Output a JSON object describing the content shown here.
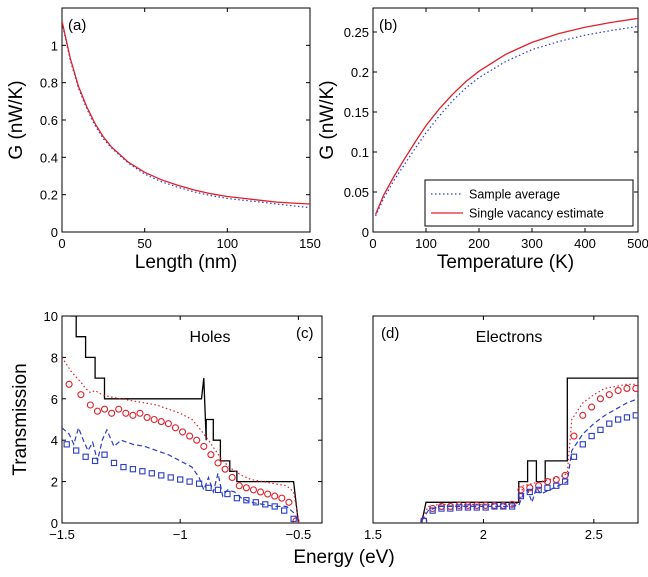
{
  "chart_data": [
    {
      "type": "line",
      "panel_label": "(a)",
      "xlabel": "Length (nm)",
      "ylabel": "G  (nW/K)",
      "xlim": [
        0,
        150
      ],
      "ylim": [
        0,
        1.2
      ],
      "xticks": [
        0,
        50,
        100,
        150
      ],
      "yticks": [
        0,
        0.2,
        0.4,
        0.6,
        0.8,
        1
      ],
      "grid": false,
      "series": [
        {
          "name": "Sample average",
          "style": "dotted",
          "color": "#2a3cc8",
          "x": [
            0,
            5,
            10,
            15,
            20,
            25,
            30,
            40,
            50,
            60,
            70,
            80,
            90,
            100,
            110,
            120,
            130,
            140,
            150
          ],
          "y": [
            1.12,
            0.92,
            0.77,
            0.66,
            0.57,
            0.5,
            0.45,
            0.37,
            0.31,
            0.27,
            0.24,
            0.215,
            0.195,
            0.18,
            0.17,
            0.16,
            0.15,
            0.14,
            0.13
          ]
        },
        {
          "name": "Single vacancy estimate",
          "style": "solid",
          "color": "#e0202a",
          "x": [
            0,
            5,
            10,
            15,
            20,
            25,
            30,
            40,
            50,
            60,
            70,
            80,
            90,
            100,
            110,
            120,
            130,
            140,
            150
          ],
          "y": [
            1.13,
            0.93,
            0.78,
            0.67,
            0.58,
            0.51,
            0.455,
            0.375,
            0.32,
            0.28,
            0.25,
            0.225,
            0.205,
            0.19,
            0.18,
            0.17,
            0.16,
            0.155,
            0.15
          ]
        }
      ]
    },
    {
      "type": "line",
      "panel_label": "(b)",
      "xlabel": "Temperature (K)",
      "ylabel": "G  (nW/K)",
      "xlim": [
        0,
        500
      ],
      "ylim": [
        0,
        0.28
      ],
      "xticks": [
        0,
        100,
        200,
        300,
        400,
        500
      ],
      "yticks": [
        0,
        0.05,
        0.1,
        0.15,
        0.2,
        0.25
      ],
      "grid": false,
      "legend": {
        "position": "bottom-right",
        "entries": [
          "Sample average",
          "Single vacancy estimate"
        ]
      },
      "series": [
        {
          "name": "Sample average",
          "style": "dotted",
          "color": "#2a3cc8",
          "x": [
            5,
            20,
            40,
            60,
            80,
            100,
            125,
            150,
            175,
            200,
            250,
            300,
            350,
            400,
            450,
            500
          ],
          "y": [
            0.02,
            0.042,
            0.065,
            0.085,
            0.105,
            0.124,
            0.145,
            0.164,
            0.18,
            0.193,
            0.213,
            0.228,
            0.238,
            0.246,
            0.252,
            0.257
          ]
        },
        {
          "name": "Single vacancy estimate",
          "style": "solid",
          "color": "#e0202a",
          "x": [
            5,
            20,
            40,
            60,
            80,
            100,
            125,
            150,
            175,
            200,
            250,
            300,
            350,
            400,
            450,
            500
          ],
          "y": [
            0.022,
            0.046,
            0.07,
            0.092,
            0.113,
            0.133,
            0.154,
            0.172,
            0.188,
            0.201,
            0.222,
            0.237,
            0.248,
            0.256,
            0.262,
            0.267
          ]
        }
      ]
    },
    {
      "type": "line",
      "panel_label": "(c)",
      "annotation": "Holes",
      "xlabel": "",
      "ylabel": "Transmission",
      "xlim": [
        -1.5,
        -0.4
      ],
      "ylim": [
        0,
        10
      ],
      "xticks": [
        -1.5,
        -1,
        -0.5
      ],
      "xticklabels": [
        "−1.5",
        "−1",
        "−0.5"
      ],
      "yticks": [
        0,
        2,
        4,
        6,
        8,
        10
      ],
      "grid": false,
      "series": [
        {
          "name": "",
          "style": "solid",
          "color": "#000000",
          "x": [
            -1.46,
            -1.46,
            -1.44,
            -1.44,
            -1.4,
            -1.4,
            -1.36,
            -1.36,
            -1.32,
            -1.32,
            -0.91,
            -0.9,
            -0.89,
            -0.89,
            -0.86,
            -0.86,
            -0.83,
            -0.83,
            -0.79,
            -0.79,
            -0.76,
            -0.76,
            -0.52,
            -0.5
          ],
          "y": [
            10.5,
            10,
            10,
            9,
            9,
            8,
            8,
            7,
            7,
            6,
            6,
            7,
            4,
            5,
            5,
            4,
            4,
            3,
            3,
            2.5,
            2.5,
            2,
            2,
            0
          ]
        },
        {
          "name": "",
          "style": "dotted",
          "color": "#e0202a",
          "x": [
            -1.5,
            -1.46,
            -1.42,
            -1.4,
            -1.38,
            -1.36,
            -1.33,
            -1.3,
            -1.25,
            -1.2,
            -1.15,
            -1.1,
            -1.05,
            -1.0,
            -0.95,
            -0.92,
            -0.9,
            -0.88,
            -0.85,
            -0.82,
            -0.78,
            -0.74,
            -0.7,
            -0.65,
            -0.6,
            -0.55,
            -0.52,
            -0.5
          ],
          "y": [
            8.0,
            7.3,
            6.8,
            6.5,
            6.3,
            6.4,
            6.2,
            6.1,
            6.0,
            5.9,
            5.8,
            5.7,
            5.5,
            5.3,
            5.0,
            4.6,
            4.3,
            4.0,
            3.5,
            3.0,
            2.6,
            2.3,
            2.1,
            2.0,
            1.9,
            1.8,
            1.5,
            0.2
          ]
        },
        {
          "name": "",
          "style": "circle-markers",
          "color": "#e0202a",
          "x": [
            -1.47,
            -1.42,
            -1.38,
            -1.35,
            -1.32,
            -1.29,
            -1.26,
            -1.23,
            -1.2,
            -1.17,
            -1.14,
            -1.11,
            -1.08,
            -1.05,
            -1.02,
            -0.99,
            -0.96,
            -0.93,
            -0.9,
            -0.87,
            -0.84,
            -0.81,
            -0.78,
            -0.75,
            -0.72,
            -0.69,
            -0.66,
            -0.63,
            -0.6,
            -0.57,
            -0.54,
            -0.51
          ],
          "y": [
            6.7,
            6.2,
            5.7,
            5.4,
            5.5,
            5.3,
            5.5,
            5.3,
            5.2,
            5.3,
            5.1,
            5.0,
            4.9,
            4.8,
            4.6,
            4.4,
            4.2,
            4.0,
            3.7,
            3.3,
            2.9,
            2.6,
            2.2,
            1.8,
            1.7,
            1.6,
            1.5,
            1.4,
            1.3,
            1.2,
            1.0,
            0.1
          ]
        },
        {
          "name": "",
          "style": "dashed",
          "color": "#2a3cc8",
          "x": [
            -1.5,
            -1.47,
            -1.45,
            -1.43,
            -1.41,
            -1.39,
            -1.37,
            -1.35,
            -1.33,
            -1.31,
            -1.28,
            -1.25,
            -1.2,
            -1.15,
            -1.1,
            -1.05,
            -1.0,
            -0.95,
            -0.92,
            -0.9,
            -0.88,
            -0.86,
            -0.84,
            -0.82,
            -0.8,
            -0.77,
            -0.74,
            -0.7,
            -0.65,
            -0.6,
            -0.55,
            -0.52,
            -0.5
          ],
          "y": [
            4.6,
            4.3,
            3.8,
            4.6,
            4.0,
            3.5,
            3.9,
            3.0,
            4.0,
            4.5,
            3.7,
            4.0,
            3.8,
            3.7,
            3.5,
            3.3,
            3.0,
            2.7,
            2.2,
            1.6,
            2.2,
            1.5,
            2.4,
            1.3,
            1.6,
            1.5,
            1.2,
            1.0,
            0.9,
            0.8,
            0.8,
            0.5,
            0.1
          ]
        },
        {
          "name": "",
          "style": "square-markers",
          "color": "#2a3cc8",
          "x": [
            -1.48,
            -1.44,
            -1.4,
            -1.36,
            -1.32,
            -1.28,
            -1.24,
            -1.2,
            -1.16,
            -1.12,
            -1.08,
            -1.04,
            -1.0,
            -0.96,
            -0.92,
            -0.88,
            -0.84,
            -0.8,
            -0.76,
            -0.72,
            -0.68,
            -0.64,
            -0.6,
            -0.56,
            -0.52
          ],
          "y": [
            3.8,
            3.5,
            3.2,
            3.0,
            3.3,
            2.9,
            2.7,
            2.6,
            2.5,
            2.4,
            2.3,
            2.2,
            2.1,
            2.0,
            1.9,
            1.7,
            1.6,
            1.4,
            1.2,
            1.1,
            1.0,
            0.9,
            0.8,
            0.6,
            0.2
          ]
        }
      ]
    },
    {
      "type": "line",
      "panel_label": "(d)",
      "annotation": "Electrons",
      "xlabel": "Energy  (eV)",
      "ylabel": "",
      "xlim": [
        1.5,
        2.7
      ],
      "ylim": [
        0,
        10
      ],
      "xticks": [
        1.5,
        2,
        2.5
      ],
      "yticks": [],
      "grid": false,
      "series": [
        {
          "name": "",
          "style": "solid",
          "color": "#000000",
          "x": [
            1.72,
            1.74,
            1.74,
            2.16,
            2.16,
            2.2,
            2.2,
            2.24,
            2.24,
            2.28,
            2.28,
            2.38,
            2.38,
            2.7
          ],
          "y": [
            0,
            1,
            1,
            1,
            2,
            2,
            3,
            3,
            2,
            2,
            3,
            3,
            7,
            7
          ]
        },
        {
          "name": "",
          "style": "dotted",
          "color": "#e0202a",
          "x": [
            1.72,
            1.75,
            1.8,
            1.9,
            2.0,
            2.1,
            2.16,
            2.18,
            2.22,
            2.26,
            2.3,
            2.34,
            2.38,
            2.4,
            2.45,
            2.5,
            2.55,
            2.6,
            2.65,
            2.7
          ],
          "y": [
            0.1,
            0.8,
            0.9,
            0.9,
            0.9,
            0.9,
            0.95,
            1.8,
            1.9,
            2.0,
            2.1,
            2.2,
            2.4,
            5.0,
            5.8,
            6.2,
            6.5,
            6.6,
            6.7,
            6.7
          ]
        },
        {
          "name": "",
          "style": "circle-markers",
          "color": "#e0202a",
          "x": [
            1.73,
            1.77,
            1.81,
            1.85,
            1.89,
            1.93,
            1.97,
            2.01,
            2.05,
            2.09,
            2.13,
            2.17,
            2.21,
            2.25,
            2.29,
            2.33,
            2.37,
            2.41,
            2.45,
            2.49,
            2.53,
            2.57,
            2.61,
            2.65,
            2.69
          ],
          "y": [
            0.1,
            0.7,
            0.8,
            0.8,
            0.85,
            0.85,
            0.85,
            0.85,
            0.85,
            0.85,
            0.9,
            1.6,
            1.7,
            1.8,
            2.0,
            2.1,
            2.3,
            4.2,
            5.2,
            5.6,
            6.0,
            6.2,
            6.4,
            6.5,
            6.5
          ]
        },
        {
          "name": "",
          "style": "dashed",
          "color": "#2a3cc8",
          "x": [
            1.72,
            1.75,
            1.8,
            1.9,
            2.0,
            2.1,
            2.16,
            2.18,
            2.2,
            2.22,
            2.24,
            2.26,
            2.3,
            2.34,
            2.38,
            2.4,
            2.45,
            2.5,
            2.55,
            2.6,
            2.65,
            2.7
          ],
          "y": [
            0.1,
            0.6,
            0.8,
            0.8,
            0.8,
            0.8,
            0.85,
            1.4,
            1.6,
            1.0,
            1.7,
            1.4,
            1.6,
            1.8,
            2.0,
            3.5,
            4.3,
            4.8,
            5.2,
            5.5,
            5.8,
            6.0
          ]
        },
        {
          "name": "",
          "style": "square-markers",
          "color": "#2a3cc8",
          "x": [
            1.73,
            1.77,
            1.81,
            1.85,
            1.89,
            1.93,
            1.97,
            2.01,
            2.05,
            2.09,
            2.13,
            2.17,
            2.21,
            2.25,
            2.29,
            2.33,
            2.37,
            2.41,
            2.45,
            2.49,
            2.53,
            2.57,
            2.61,
            2.65,
            2.69
          ],
          "y": [
            0.1,
            0.6,
            0.7,
            0.7,
            0.75,
            0.75,
            0.75,
            0.75,
            0.8,
            0.8,
            0.8,
            1.3,
            1.5,
            1.6,
            1.7,
            1.8,
            2.0,
            3.2,
            3.8,
            4.2,
            4.5,
            4.8,
            5.0,
            5.1,
            5.2
          ]
        }
      ]
    }
  ]
}
